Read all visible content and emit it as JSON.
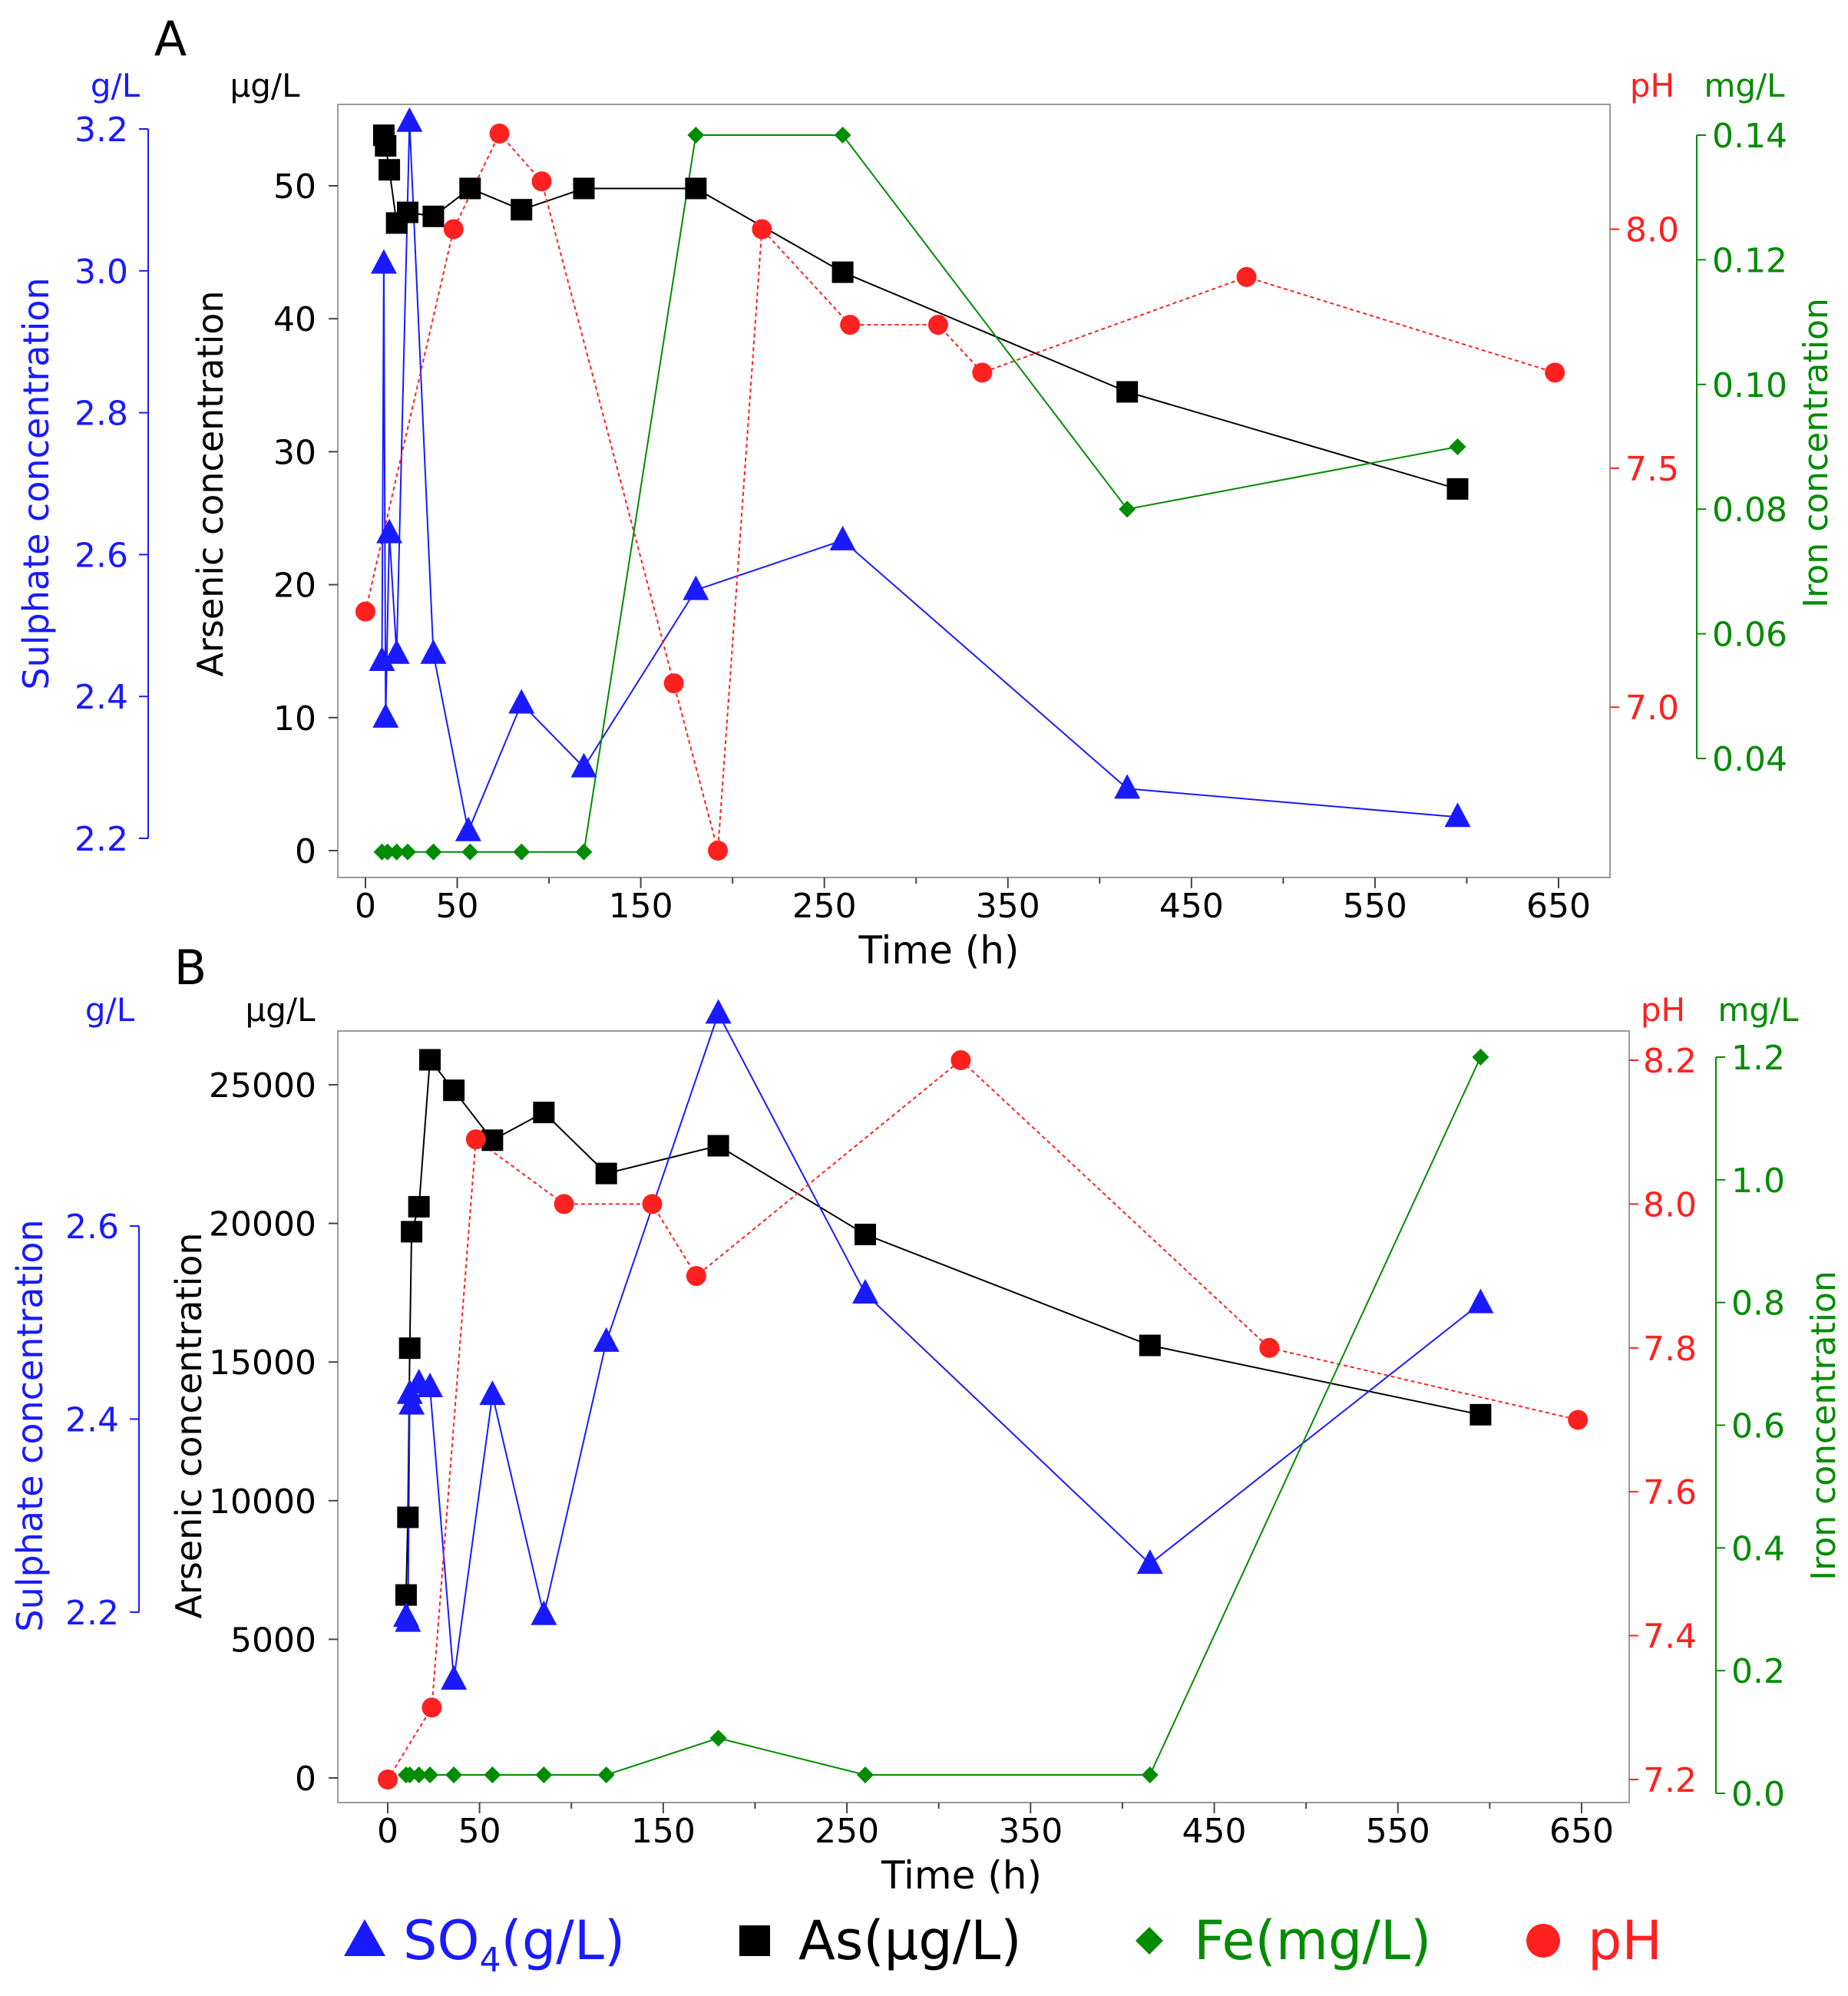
{
  "colors": {
    "sulphate": "#1a1aff",
    "arsenic": "#000000",
    "iron": "#008c00",
    "ph": "#ff2020",
    "axis": "#444444",
    "frame": "#9a9a9a"
  },
  "legend": [
    {
      "key": "so4",
      "label_main": "SO",
      "label_sub": "4",
      "label_tail": "(g/L)",
      "color": "#1a1aff",
      "marker": "triangle"
    },
    {
      "key": "as",
      "label_main": "As(μg/L)",
      "label_sub": "",
      "label_tail": "",
      "color": "#000000",
      "marker": "square"
    },
    {
      "key": "fe",
      "label_main": "Fe(mg/L)",
      "label_sub": "",
      "label_tail": "",
      "color": "#008c00",
      "marker": "diamond"
    },
    {
      "key": "ph",
      "label_main": "pH",
      "label_sub": "",
      "label_tail": "",
      "color": "#ff2020",
      "marker": "circle"
    }
  ],
  "chart_data": [
    {
      "panel": "A",
      "type": "line",
      "xlabel": "Time (h)",
      "xlim": [
        -18,
        682
      ],
      "xticks": [
        0,
        50,
        150,
        250,
        350,
        450,
        550,
        650
      ],
      "axes": {
        "arsenic": {
          "label": "Arsenic concentration",
          "unit": "μg/L",
          "lim": [
            -1,
            55.5
          ],
          "ticks": [
            0,
            10,
            20,
            30,
            40,
            50
          ]
        },
        "sulphate": {
          "label": "Sulphate concentration",
          "unit": "g/L",
          "lim": [
            2.2,
            3.2
          ],
          "ticks": [
            "2.2",
            "2.4",
            "2.6",
            "2.8",
            "3.0",
            "3.2"
          ]
        },
        "ph": {
          "label": "",
          "unit": "pH",
          "lim": [
            6.7,
            8.2
          ],
          "ticks": [
            "7.0",
            "7.5",
            "8.0"
          ]
        },
        "iron": {
          "label": "Iron concentration",
          "unit": "mg/L",
          "lim": [
            0.04,
            0.14
          ],
          "ticks": [
            "0.04",
            "0.06",
            "0.08",
            "0.10",
            "0.12",
            "0.14"
          ]
        }
      },
      "series": [
        {
          "name": "As",
          "axis": "arsenic",
          "marker": "square",
          "dashed": false,
          "x": [
            10,
            11,
            13,
            17,
            23,
            37,
            57,
            85,
            119,
            180,
            260,
            415,
            595
          ],
          "y": [
            53.8,
            53.0,
            51.2,
            47.2,
            48.0,
            47.7,
            49.8,
            48.2,
            49.8,
            49.8,
            43.5,
            34.5,
            27.2
          ]
        },
        {
          "name": "SO4",
          "axis": "sulphate",
          "marker": "triangle",
          "dashed": false,
          "x": [
            9,
            10,
            11,
            13,
            17,
            24,
            37,
            56,
            85,
            119,
            180,
            260,
            415,
            595
          ],
          "y": [
            2.45,
            3.01,
            2.37,
            2.63,
            2.46,
            3.21,
            2.46,
            2.21,
            2.39,
            2.3,
            2.55,
            2.62,
            2.27,
            2.23
          ]
        },
        {
          "name": "pH",
          "axis": "ph",
          "marker": "circle",
          "dashed": true,
          "x": [
            0,
            48,
            73,
            96,
            168,
            192,
            216,
            264,
            312,
            336,
            480,
            648
          ],
          "y": [
            7.2,
            8.0,
            8.2,
            8.1,
            7.05,
            6.7,
            8.0,
            7.8,
            7.8,
            7.7,
            7.9,
            7.7
          ]
        },
        {
          "name": "Fe",
          "axis": "iron",
          "marker": "diamond",
          "dashed": false,
          "x": [
            9,
            12,
            17,
            23,
            37,
            57,
            85,
            119,
            180,
            260,
            415,
            595
          ],
          "y": [
            0.025,
            0.025,
            0.025,
            0.025,
            0.025,
            0.025,
            0.025,
            0.025,
            0.14,
            0.14,
            0.08,
            0.09
          ]
        }
      ]
    },
    {
      "panel": "B",
      "type": "line",
      "xlabel": "Time (h)",
      "xlim": [
        -23,
        682
      ],
      "xticks": [
        0,
        50,
        150,
        250,
        350,
        450,
        550,
        650
      ],
      "axes": {
        "arsenic": {
          "label": "Arsenic concentration",
          "unit": "μg/L",
          "lim": [
            -300,
            26000
          ],
          "ticks": [
            0,
            5000,
            10000,
            15000,
            20000,
            25000
          ]
        },
        "sulphate": {
          "label": "Sulphate concentration",
          "unit": "g/L",
          "lim": [
            2.2,
            2.6
          ],
          "ticks": [
            "2.2",
            "2.4",
            "2.6"
          ]
        },
        "ph": {
          "label": "",
          "unit": "pH",
          "lim": [
            7.2,
            8.2
          ],
          "ticks": [
            "7.2",
            "7.4",
            "7.6",
            "7.8",
            "8.0",
            "8.2"
          ]
        },
        "iron": {
          "label": "Iron concentration",
          "unit": "mg/L",
          "lim": [
            0.0,
            1.2
          ],
          "ticks": [
            "0.0",
            "0.2",
            "0.4",
            "0.6",
            "0.8",
            "1.0",
            "1.2"
          ]
        }
      },
      "series": [
        {
          "name": "As",
          "axis": "arsenic",
          "marker": "square",
          "dashed": false,
          "x": [
            10,
            11,
            12,
            13,
            17,
            23,
            36,
            57,
            85,
            119,
            180,
            260,
            415,
            595
          ],
          "y": [
            6600,
            9400,
            15500,
            19700,
            20600,
            25900,
            24800,
            23000,
            24000,
            21800,
            22800,
            19600,
            15600,
            13100
          ]
        },
        {
          "name": "SO4",
          "axis": "sulphate",
          "marker": "triangle",
          "dashed": false,
          "x": [
            10,
            11,
            12,
            13,
            17,
            23,
            36,
            57,
            85,
            119,
            180,
            260,
            415,
            595
          ],
          "y": [
            2.195,
            2.19,
            2.426,
            2.415,
            2.437,
            2.433,
            2.13,
            2.425,
            2.197,
            2.48,
            2.82,
            2.53,
            2.25,
            2.52
          ]
        },
        {
          "name": "pH",
          "axis": "ph",
          "marker": "circle",
          "dashed": true,
          "x": [
            0,
            24,
            48,
            96,
            144,
            168,
            312,
            480,
            648
          ],
          "y": [
            7.2,
            7.3,
            8.09,
            8.0,
            8.0,
            7.9,
            8.2,
            7.8,
            7.7
          ]
        },
        {
          "name": "Fe",
          "axis": "iron",
          "marker": "diamond",
          "dashed": false,
          "x": [
            10,
            12,
            17,
            23,
            36,
            57,
            85,
            119,
            180,
            260,
            415,
            595
          ],
          "y": [
            0.03,
            0.03,
            0.03,
            0.03,
            0.03,
            0.03,
            0.03,
            0.03,
            0.09,
            0.03,
            0.03,
            1.2
          ]
        }
      ]
    }
  ]
}
